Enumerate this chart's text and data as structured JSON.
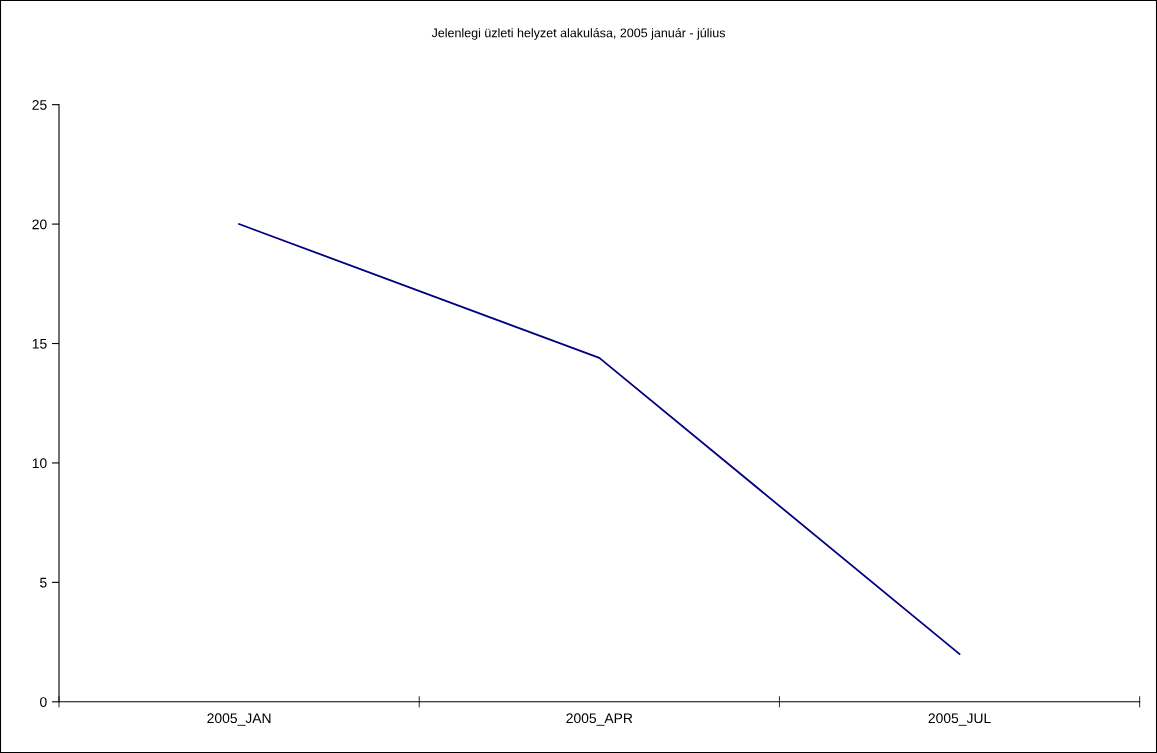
{
  "chart_data": {
    "type": "line",
    "title": "Jelenlegi üzleti helyzet alakulása, 2005 január - július",
    "categories": [
      "2005_JAN",
      "2005_APR",
      "2005_JUL"
    ],
    "series": [
      {
        "color": "#000080",
        "values": [
          20,
          14.4,
          2
        ]
      }
    ],
    "ylim": [
      0,
      25
    ],
    "yticks": [
      0,
      5,
      10,
      15,
      20,
      25
    ],
    "grid": false,
    "legend": false,
    "marker": "none",
    "line_style": "solid"
  }
}
